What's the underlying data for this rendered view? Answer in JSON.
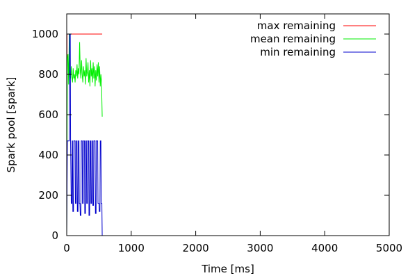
{
  "chart_data": {
    "type": "line",
    "xlabel": "Time [ms]",
    "ylabel": "Spark pool [spark]",
    "xlim": [
      0,
      5000
    ],
    "ylim": [
      0,
      1100
    ],
    "x_ticks": [
      0,
      1000,
      2000,
      3000,
      4000,
      5000
    ],
    "y_ticks": [
      0,
      200,
      400,
      600,
      800,
      1000
    ],
    "grid": false,
    "legend_position": "top-right",
    "series": [
      {
        "name": "max remaining",
        "color": "#ff0000",
        "points": [
          [
            0,
            0
          ],
          [
            5,
            1000
          ],
          [
            550,
            1000
          ]
        ]
      },
      {
        "name": "mean remaining",
        "color": "#00ee00",
        "points": [
          [
            0,
            0
          ],
          [
            10,
            880
          ],
          [
            20,
            900
          ],
          [
            30,
            750
          ],
          [
            40,
            1000
          ],
          [
            50,
            820
          ],
          [
            60,
            780
          ],
          [
            70,
            840
          ],
          [
            80,
            790
          ],
          [
            90,
            760
          ],
          [
            100,
            830
          ],
          [
            110,
            780
          ],
          [
            120,
            800
          ],
          [
            130,
            760
          ],
          [
            140,
            820
          ],
          [
            150,
            790
          ],
          [
            160,
            850
          ],
          [
            170,
            780
          ],
          [
            180,
            830
          ],
          [
            190,
            800
          ],
          [
            200,
            960
          ],
          [
            210,
            820
          ],
          [
            220,
            780
          ],
          [
            230,
            870
          ],
          [
            240,
            800
          ],
          [
            250,
            760
          ],
          [
            260,
            840
          ],
          [
            270,
            790
          ],
          [
            280,
            820
          ],
          [
            290,
            750
          ],
          [
            300,
            880
          ],
          [
            310,
            790
          ],
          [
            320,
            810
          ],
          [
            330,
            860
          ],
          [
            340,
            760
          ],
          [
            350,
            820
          ],
          [
            360,
            740
          ],
          [
            370,
            870
          ],
          [
            380,
            790
          ],
          [
            390,
            830
          ],
          [
            400,
            760
          ],
          [
            410,
            860
          ],
          [
            420,
            780
          ],
          [
            430,
            840
          ],
          [
            440,
            740
          ],
          [
            450,
            820
          ],
          [
            460,
            770
          ],
          [
            470,
            850
          ],
          [
            480,
            790
          ],
          [
            490,
            860
          ],
          [
            500,
            760
          ],
          [
            510,
            840
          ],
          [
            520,
            740
          ],
          [
            530,
            800
          ],
          [
            540,
            760
          ],
          [
            550,
            590
          ]
        ]
      },
      {
        "name": "min remaining",
        "color": "#0000cc",
        "points": [
          [
            0,
            0
          ],
          [
            10,
            470
          ],
          [
            40,
            470
          ],
          [
            45,
            1000
          ],
          [
            55,
            1000
          ],
          [
            60,
            470
          ],
          [
            70,
            160
          ],
          [
            80,
            160
          ],
          [
            85,
            470
          ],
          [
            90,
            470
          ],
          [
            95,
            120
          ],
          [
            105,
            120
          ],
          [
            110,
            470
          ],
          [
            130,
            470
          ],
          [
            135,
            160
          ],
          [
            145,
            160
          ],
          [
            150,
            470
          ],
          [
            160,
            470
          ],
          [
            165,
            120
          ],
          [
            175,
            120
          ],
          [
            180,
            470
          ],
          [
            190,
            470
          ],
          [
            195,
            160
          ],
          [
            205,
            160
          ],
          [
            210,
            100
          ],
          [
            220,
            100
          ],
          [
            225,
            470
          ],
          [
            240,
            470
          ],
          [
            245,
            160
          ],
          [
            255,
            160
          ],
          [
            260,
            470
          ],
          [
            275,
            470
          ],
          [
            280,
            110
          ],
          [
            290,
            110
          ],
          [
            295,
            470
          ],
          [
            305,
            470
          ],
          [
            310,
            160
          ],
          [
            320,
            160
          ],
          [
            325,
            470
          ],
          [
            340,
            470
          ],
          [
            345,
            100
          ],
          [
            355,
            100
          ],
          [
            360,
            470
          ],
          [
            370,
            470
          ],
          [
            375,
            160
          ],
          [
            385,
            160
          ],
          [
            390,
            470
          ],
          [
            400,
            470
          ],
          [
            405,
            150
          ],
          [
            415,
            150
          ],
          [
            420,
            470
          ],
          [
            440,
            470
          ],
          [
            445,
            110
          ],
          [
            455,
            110
          ],
          [
            460,
            470
          ],
          [
            480,
            470
          ],
          [
            485,
            160
          ],
          [
            500,
            160
          ],
          [
            505,
            120
          ],
          [
            515,
            120
          ],
          [
            520,
            470
          ],
          [
            530,
            470
          ],
          [
            535,
            160
          ],
          [
            545,
            160
          ],
          [
            550,
            0
          ]
        ]
      }
    ]
  }
}
